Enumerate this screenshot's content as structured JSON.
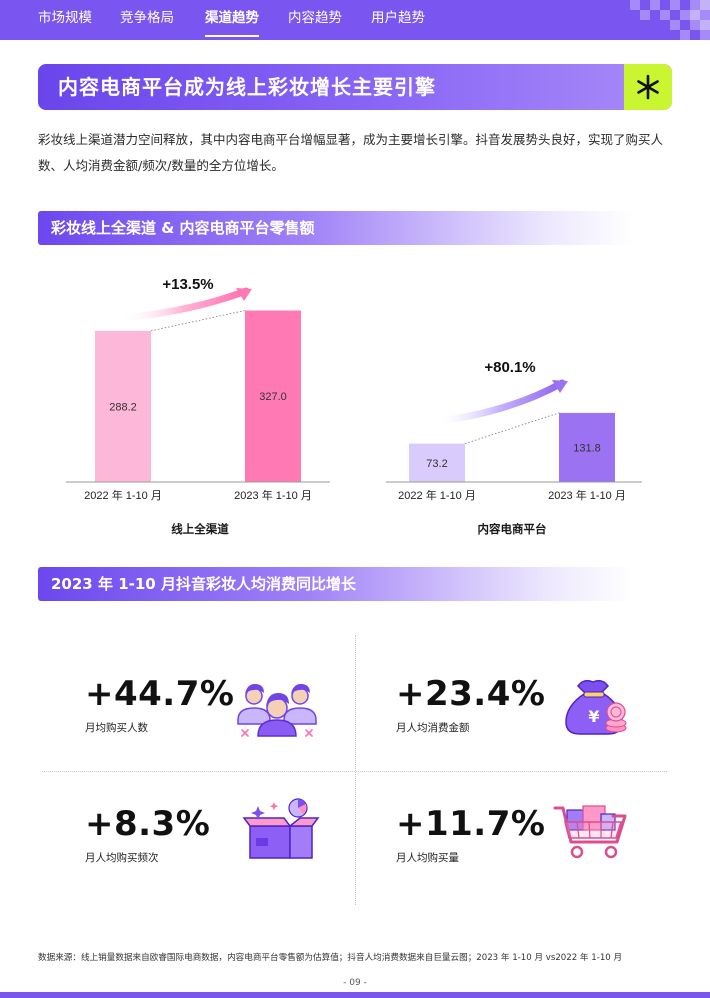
{
  "nav": {
    "items": [
      {
        "label": "市场规模"
      },
      {
        "label": "竞争格局"
      },
      {
        "label": "渠道趋势",
        "active": true
      },
      {
        "label": "内容趋势"
      },
      {
        "label": "用户趋势"
      }
    ]
  },
  "banner": {
    "title": "内容电商平台成为线上彩妆增长主要引擎",
    "icon": "asterisk-icon"
  },
  "intro": "彩妆线上渠道潜力空间释放，其中内容电商平台增幅显著，成为主要增长引擎。抖音发展势头良好，实现了购买人数、人均消费金额/频次/数量的全方位增长。",
  "section1": {
    "title": "彩妆线上全渠道 & 内容电商平台零售额"
  },
  "chart_data": [
    {
      "type": "bar",
      "categories": [
        "2022 年 1-10 月",
        "2023 年 1-10 月"
      ],
      "values": [
        288.2,
        327.0
      ],
      "value_labels": [
        "288.2",
        "327.0"
      ],
      "growth_label": "+13.5%",
      "caption": "线上全渠道",
      "colors": [
        "#fdb7d8",
        "#ff7ab4"
      ],
      "ylim": [
        0,
        400
      ]
    },
    {
      "type": "bar",
      "categories": [
        "2022 年 1-10 月",
        "2023 年 1-10 月"
      ],
      "values": [
        73.2,
        131.8
      ],
      "value_labels": [
        "73.2",
        "131.8"
      ],
      "growth_label": "+80.1%",
      "caption": "内容电商平台",
      "colors": [
        "#d9cbfb",
        "#9a72f2"
      ],
      "ylim": [
        0,
        400
      ]
    }
  ],
  "section2": {
    "title": "2023 年 1-10 月抖音彩妆人均消费同比增长"
  },
  "kpis": [
    {
      "value": "+44.7%",
      "label": "月均购买人数",
      "icon": "users-group-icon"
    },
    {
      "value": "+23.4%",
      "label": "月人均消费金额",
      "icon": "money-bag-icon"
    },
    {
      "value": "+8.3%",
      "label": "月人均购买频次",
      "icon": "open-box-icon"
    },
    {
      "value": "+11.7%",
      "label": "月人均购买量",
      "icon": "shopping-cart-icon"
    }
  ],
  "footnote": "数据来源：线上销量数据来自欧睿国际电商数据，内容电商平台零售额为估算值；抖音人均消费数据来自巨量云图；2023 年 1-10 月 vs2022 年 1-10 月",
  "page_number": "- 09 -"
}
